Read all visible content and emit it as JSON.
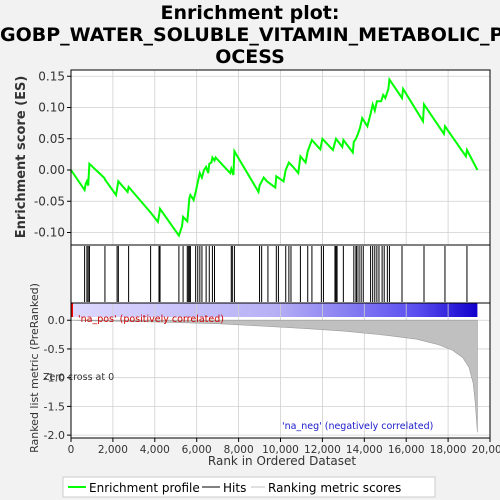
{
  "chart_data": {
    "type": "line",
    "title_lines": [
      "Enrichment plot:",
      "GOBP_WATER_SOLUBLE_VITAMIN_METABOLIC_PR",
      "OCESS"
    ],
    "es_panel": {
      "ylabel": "Enrichment score (ES)",
      "ylim": [
        -0.12,
        0.16
      ],
      "yticks": [
        -0.1,
        -0.05,
        0.0,
        0.05,
        0.1,
        0.15
      ],
      "ytick_labels": [
        "-0.10",
        "-0.05",
        "0.00",
        "0.05",
        "0.10",
        "0.15"
      ],
      "series": [
        {
          "name": "Enrichment profile",
          "color": "#00ff00",
          "x": [
            0,
            650,
            700,
            760,
            820,
            880,
            1600,
            1620,
            2150,
            2200,
            2260,
            2700,
            2750,
            3800,
            4150,
            4200,
            4250,
            5150,
            5300,
            5350,
            5550,
            5600,
            5650,
            5700,
            5850,
            5950,
            6050,
            6150,
            6250,
            6350,
            6450,
            6550,
            6600,
            6700,
            6750,
            6850,
            6900,
            7600,
            7650,
            7750,
            7800,
            8950,
            9000,
            9200,
            9350,
            9750,
            9800,
            10150,
            10250,
            10400,
            10600,
            10850,
            10950,
            11200,
            11300,
            11500,
            11900,
            12000,
            12500,
            12650,
            12950,
            13000,
            13450,
            13500,
            13600,
            13700,
            13800,
            13900,
            14150,
            14300,
            14400,
            14500,
            14600,
            14800,
            14900,
            15000,
            15150,
            15200,
            15800,
            15850,
            16800,
            16850,
            17800,
            17850,
            18850,
            18900,
            19400
          ],
          "y": [
            0.0,
            -0.032,
            -0.022,
            -0.018,
            -0.025,
            0.01,
            -0.013,
            -0.015,
            -0.04,
            -0.03,
            -0.018,
            -0.035,
            -0.027,
            -0.068,
            -0.083,
            -0.073,
            -0.062,
            -0.105,
            -0.09,
            -0.075,
            -0.082,
            -0.065,
            -0.045,
            -0.04,
            -0.048,
            -0.035,
            -0.02,
            -0.005,
            -0.012,
            0.0,
            0.005,
            -0.005,
            0.01,
            0.012,
            0.02,
            0.015,
            0.02,
            -0.005,
            0.002,
            -0.008,
            0.03,
            -0.035,
            -0.025,
            -0.012,
            -0.018,
            -0.028,
            -0.01,
            -0.018,
            0.0,
            0.012,
            0.005,
            -0.005,
            0.022,
            0.012,
            0.03,
            0.048,
            0.033,
            0.05,
            0.032,
            0.05,
            0.037,
            0.048,
            0.028,
            0.045,
            0.05,
            0.058,
            0.068,
            0.083,
            0.07,
            0.09,
            0.105,
            0.095,
            0.11,
            0.11,
            0.12,
            0.115,
            0.13,
            0.145,
            0.115,
            0.13,
            0.078,
            0.105,
            0.058,
            0.07,
            0.022,
            0.032,
            0.0
          ]
        }
      ]
    },
    "hits": [
      650,
      760,
      820,
      880,
      1620,
      2200,
      2260,
      2750,
      3800,
      4200,
      4250,
      5150,
      5350,
      5550,
      5600,
      5650,
      5700,
      5950,
      6050,
      6150,
      6250,
      6450,
      6600,
      6750,
      6850,
      7650,
      7700,
      7800,
      9000,
      9100,
      9400,
      9800,
      9900,
      10250,
      10400,
      10500,
      10950,
      11300,
      11500,
      11950,
      12050,
      12600,
      12650,
      12700,
      13000,
      13500,
      13600,
      13650,
      13750,
      13850,
      13950,
      14300,
      14400,
      14500,
      14600,
      14700,
      14850,
      14950,
      15100,
      15200,
      15800,
      16850,
      17850,
      18900
    ],
    "ranked_panel": {
      "ylabel": "Ranked list metric (PreRanked)",
      "xlabel": "Rank in Ordered Dataset",
      "ylim": [
        -2.05,
        0.3
      ],
      "yticks": [
        0.0,
        -0.5,
        -1.0,
        -1.5,
        -2.0
      ],
      "ytick_labels": [
        "0.0",
        "-0.5",
        "-1.0",
        "-1.5",
        "-2.0"
      ],
      "metric_curve": {
        "x": [
          0,
          1000,
          4000,
          7000,
          9000,
          11000,
          13000,
          15000,
          16500,
          17500,
          18200,
          18700,
          19000,
          19200,
          19300,
          19400
        ],
        "y": [
          0.0,
          -0.01,
          -0.03,
          -0.06,
          -0.1,
          -0.14,
          -0.19,
          -0.26,
          -0.33,
          -0.42,
          -0.52,
          -0.65,
          -0.82,
          -1.1,
          -1.45,
          -1.95
        ]
      },
      "na_pos_label": "'na_pos' (positively correlated)",
      "na_neg_label": "'na_neg' (negatively correlated)",
      "zero_cross_label": "Zero cross at 0"
    },
    "xlim": [
      0,
      20000
    ],
    "xticks": [
      0,
      2000,
      4000,
      6000,
      8000,
      10000,
      12000,
      14000,
      16000,
      18000,
      20000
    ],
    "xtick_labels": [
      "0",
      "2,000",
      "4,000",
      "6,000",
      "8,000",
      "10,000",
      "12,000",
      "14,000",
      "16,000",
      "18,000",
      "20,000"
    ],
    "n_genes": 19400,
    "legend": {
      "placement": "bottom",
      "items": [
        {
          "label": "Enrichment profile",
          "color": "#00ff00"
        },
        {
          "label": "Hits",
          "color": "#000000"
        },
        {
          "label": "Ranking metric scores",
          "color": "#c0c0c0"
        }
      ]
    },
    "colors": {
      "pos_band": "#ff0000",
      "neg_band": "#0000ff",
      "metric_fill": "#c0c0c0"
    }
  }
}
